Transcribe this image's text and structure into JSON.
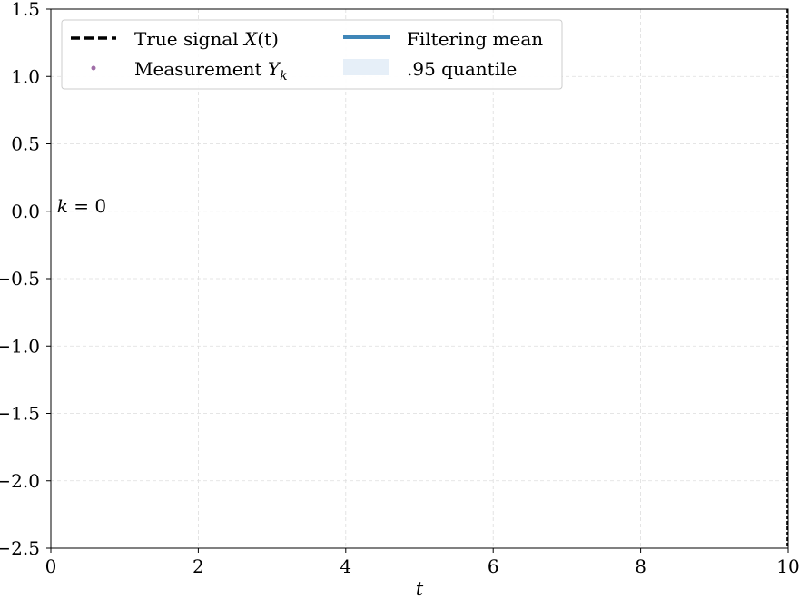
{
  "chart_data": {
    "type": "line",
    "xlabel": "t",
    "ylabel": "",
    "title": "",
    "xlim": [
      0,
      10
    ],
    "ylim": [
      -2.5,
      1.5
    ],
    "x_ticks": [
      0,
      2,
      4,
      6,
      8,
      10
    ],
    "y_ticks": [
      1.5,
      1.0,
      0.5,
      0.0,
      -0.5,
      -1.0,
      -1.5,
      -2.0,
      -2.5
    ],
    "x_tick_labels": [
      "0",
      "2",
      "4",
      "6",
      "8",
      "10"
    ],
    "y_tick_labels": [
      "1.5",
      "1.0",
      "0.5",
      "0.0",
      "−0.5",
      "−1.0",
      "−1.5",
      "−2.0",
      "−2.5"
    ],
    "grid": true,
    "legend_placement": "top-left",
    "vertical_marker_x": 10,
    "annotation": {
      "var": "k",
      "rest": " = 0",
      "x": 0.12,
      "y": 0.0
    },
    "series": [
      {
        "name": "True signal ",
        "name_math": "X",
        "name_suffix": "(t)",
        "style": "dashed",
        "color": "#000000",
        "points": []
      },
      {
        "name": "Measurement ",
        "name_math": "Y",
        "name_sub": "k",
        "style": "marker",
        "color": "#a06ea8",
        "points": []
      },
      {
        "name": "Filtering mean",
        "style": "solid",
        "color": "#3f86b8",
        "points": []
      },
      {
        "name": ".95 quantile",
        "style": "band",
        "color": "#e6eff8",
        "points": []
      }
    ]
  }
}
